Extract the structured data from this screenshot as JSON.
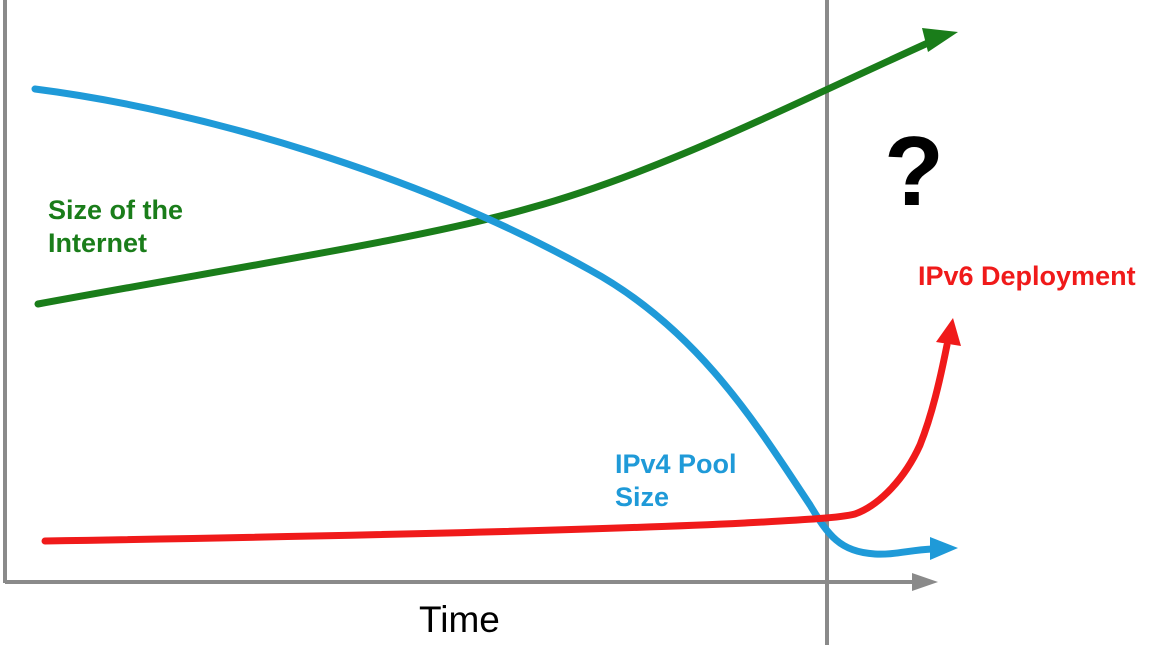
{
  "diagram": {
    "colors": {
      "internet": "#1a7d1a",
      "ipv4": "#1f9ad8",
      "ipv6": "#f01a1a",
      "axis": "#8a8a8a",
      "text": "#000000"
    },
    "labels": {
      "internet_line1": "Size of the",
      "internet_line2": "Internet",
      "ipv4_line1": "IPv4 Pool",
      "ipv4_line2": "Size",
      "ipv6": "IPv6 Deployment",
      "question": "?",
      "x_axis": "Time"
    }
  }
}
